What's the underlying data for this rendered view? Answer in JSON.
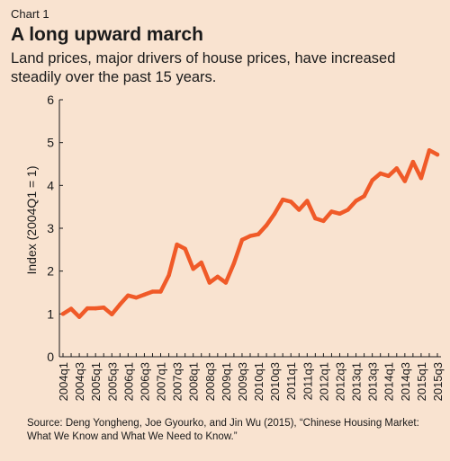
{
  "header": {
    "label": "Chart 1",
    "title": "A long upward march",
    "subtitle": "Land prices, major drivers of house prices, have increased steadily over the past 15 years."
  },
  "source": "Source: Deng Yongheng, Joe Gyourko, and Jin Wu (2015), “Chinese Housing Market: What We Know and What We Need to Know.”",
  "colors": {
    "line": "#f05a28",
    "axis": "#1a1a1a",
    "background": "#f9e3d0"
  },
  "chart_data": {
    "type": "line",
    "title": "A long upward march",
    "subtitle": "Land prices, major drivers of house prices, have increased steadily over the past 15 years.",
    "ylabel": "Index (2004Q1 = 1)",
    "xlabel": "",
    "ylim": [
      0,
      6
    ],
    "yticks": [
      0,
      1,
      2,
      3,
      4,
      5,
      6
    ],
    "grid": false,
    "x": [
      "2004q1",
      "2004q2",
      "2004q3",
      "2004q4",
      "2005q1",
      "2005q2",
      "2005q3",
      "2005q4",
      "2006q1",
      "2006q2",
      "2006q3",
      "2006q4",
      "2007q1",
      "2007q2",
      "2007q3",
      "2007q4",
      "2008q1",
      "2008q2",
      "2008q3",
      "2008q4",
      "2009q1",
      "2009q2",
      "2009q3",
      "2009q4",
      "2010q1",
      "2010q2",
      "2010q3",
      "2010q4",
      "2011q1",
      "2011q2",
      "2011q3",
      "2011q4",
      "2012q1",
      "2012q2",
      "2012q3",
      "2012q4",
      "2013q1",
      "2013q2",
      "2013q3",
      "2013q4",
      "2014q1",
      "2014q2",
      "2014q3",
      "2014q4",
      "2015q1",
      "2015q2",
      "2015q3"
    ],
    "xtick_labels": [
      "2004q1",
      "2004q3",
      "2005q1",
      "2005q3",
      "2006q1",
      "2006q3",
      "2007q1",
      "2007q3",
      "2008q1",
      "2008q3",
      "2009q1",
      "2009q3",
      "2010q1",
      "2010q3",
      "2011q1",
      "2011q3",
      "2012q1",
      "2012q3",
      "2013q1",
      "2013q3",
      "2014q1",
      "2014q3",
      "2015q1",
      "2015q3"
    ],
    "series": [
      {
        "values": [
          1.0,
          1.12,
          0.93,
          1.13,
          1.13,
          1.15,
          0.99,
          1.22,
          1.43,
          1.38,
          1.45,
          1.52,
          1.52,
          1.9,
          2.62,
          2.52,
          2.05,
          2.2,
          1.73,
          1.87,
          1.73,
          2.18,
          2.73,
          2.82,
          2.86,
          3.07,
          3.34,
          3.67,
          3.62,
          3.43,
          3.64,
          3.23,
          3.17,
          3.39,
          3.34,
          3.43,
          3.64,
          3.75,
          4.12,
          4.28,
          4.22,
          4.4,
          4.1,
          4.55,
          4.17,
          4.82,
          4.72
        ]
      }
    ]
  }
}
